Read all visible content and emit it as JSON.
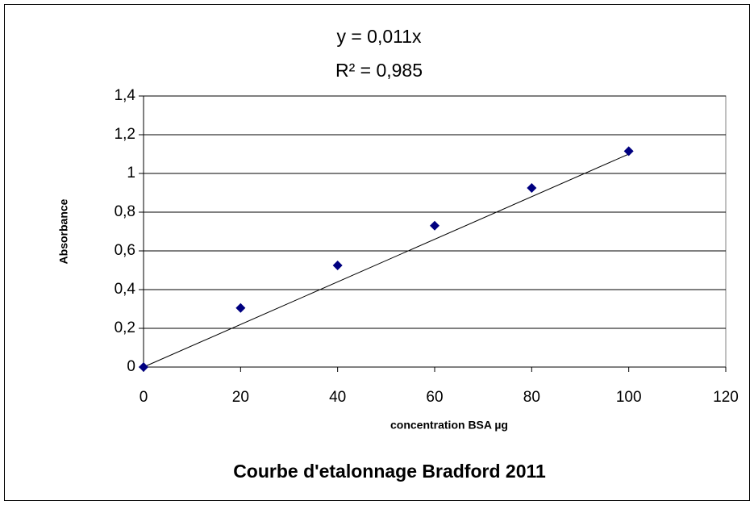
{
  "chart_data": {
    "type": "scatter",
    "title": "Courbe d'etalonnage Bradford 2011",
    "xlabel": "concentration BSA µg",
    "ylabel": "Absorbance",
    "x": [
      0,
      20,
      40,
      60,
      80,
      100
    ],
    "values": [
      0,
      0.305,
      0.525,
      0.73,
      0.925,
      1.115
    ],
    "color": "#000080",
    "xlim": [
      0,
      120
    ],
    "xticks": [
      0,
      20,
      40,
      60,
      80,
      100,
      120
    ],
    "ylim": [
      0,
      1.4
    ],
    "yticks": [
      0,
      {
        "value": 0.2,
        "label": "0,2"
      },
      {
        "value": 0.4,
        "label": "0,4"
      },
      {
        "value": 0.6,
        "label": "0,6"
      },
      {
        "value": 0.8,
        "label": "0,8"
      },
      1,
      {
        "value": 1.2,
        "label": "1,2"
      },
      {
        "value": 1.4,
        "label": "1,4"
      }
    ],
    "grid": true,
    "trendline": {
      "equation": "y = 0,011x",
      "r2_label": "R² = 0,985",
      "slope": 0.011,
      "r2": 0.985
    }
  }
}
